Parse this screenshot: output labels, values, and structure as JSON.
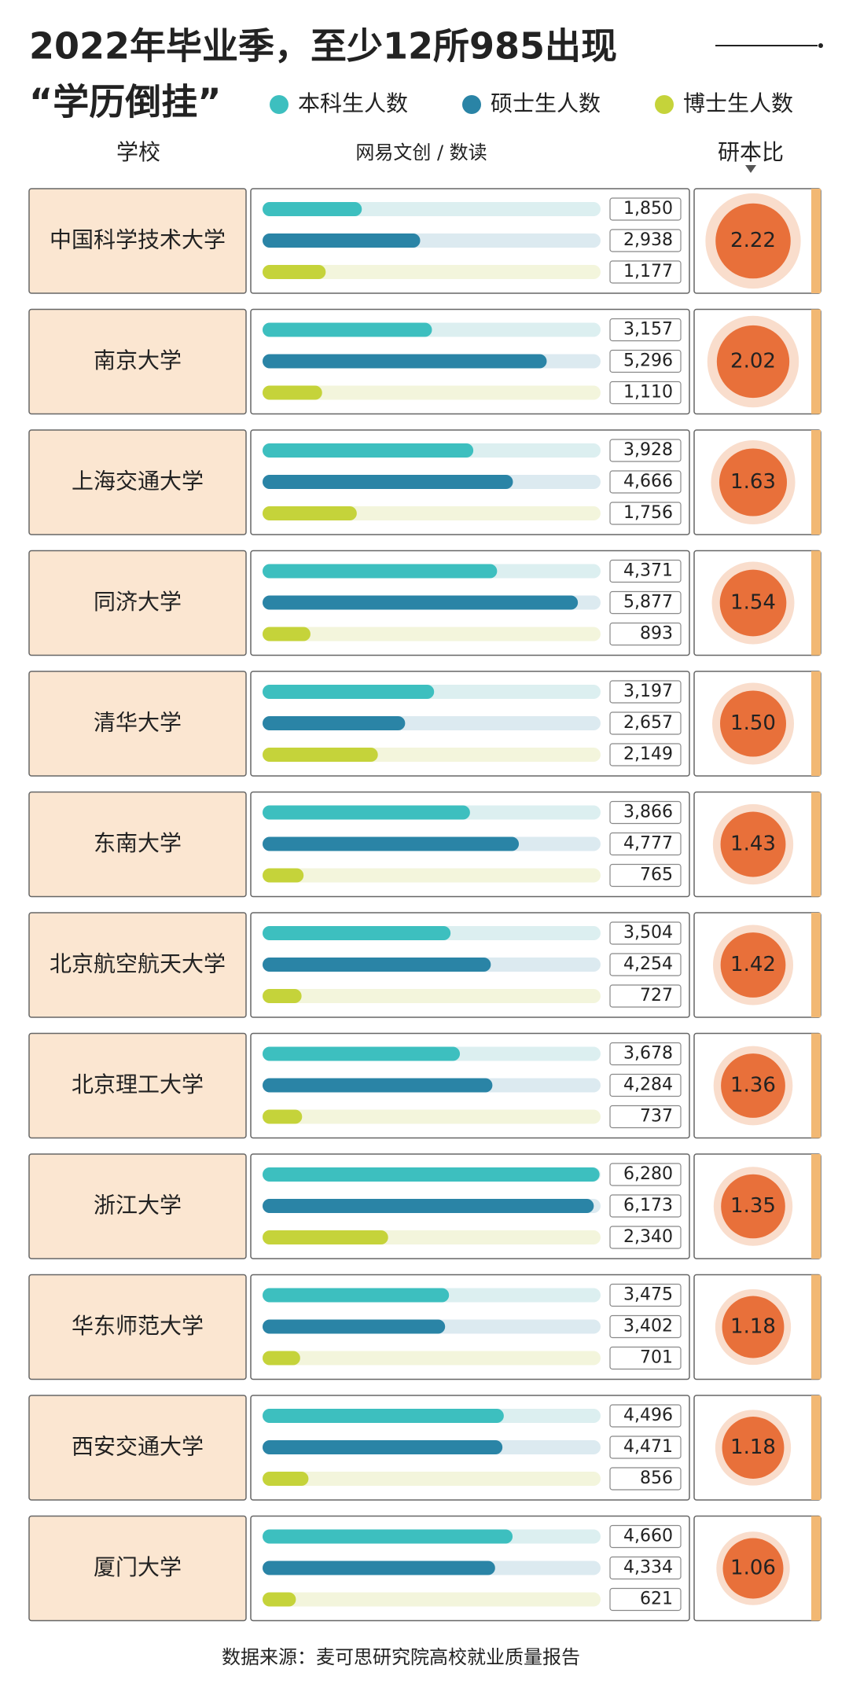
{
  "chart_data": {
    "type": "bar",
    "orientation": "horizontal",
    "title": "2022年毕业季，至少12所985出现",
    "subtitle": "“学历倒挂”",
    "category_header": "学校",
    "brand": "网易文创 / 数读",
    "source": "数据来源：麦可思研究院高校就业质量报告",
    "categories": [
      "中国科学技术大学",
      "南京大学",
      "上海交通大学",
      "同济大学",
      "清华大学",
      "东南大学",
      "北京航空航天大学",
      "北京理工大学",
      "浙江大学",
      "华东师范大学",
      "西安交通大学",
      "厦门大学"
    ],
    "xlim": [
      0,
      6300
    ],
    "series": [
      {
        "name": "本科生人数",
        "color": "#3dbfbf",
        "values": [
          1850,
          3157,
          3928,
          4371,
          3197,
          3866,
          3504,
          3678,
          6280,
          3475,
          4496,
          4660
        ],
        "value_labels": [
          "1,850",
          "3,157",
          "3,928",
          "4,371",
          "3,197",
          "3,866",
          "3,504",
          "3,678",
          "6,280",
          "3,475",
          "4,496",
          "4,660"
        ]
      },
      {
        "name": "硕士生人数",
        "color": "#2a84a6",
        "values": [
          2938,
          5296,
          4666,
          5877,
          2657,
          4777,
          4254,
          4284,
          6173,
          3402,
          4471,
          4334
        ],
        "value_labels": [
          "2,938",
          "5,296",
          "4,666",
          "5,877",
          "2,657",
          "4,777",
          "4,254",
          "4,284",
          "6,173",
          "3,402",
          "4,471",
          "4,334"
        ]
      },
      {
        "name": "博士生人数",
        "color": "#c5d33a",
        "values": [
          1177,
          1110,
          1756,
          893,
          2149,
          765,
          727,
          737,
          2340,
          701,
          856,
          621
        ],
        "value_labels": [
          "1,177",
          "1,110",
          "1,756",
          "893",
          "2,149",
          "765",
          "727",
          "737",
          "2,340",
          "701",
          "856",
          "621"
        ]
      }
    ],
    "ratio": {
      "name": "研本比",
      "color": "#e8703a",
      "values": [
        2.22,
        2.02,
        1.63,
        1.54,
        1.5,
        1.43,
        1.42,
        1.36,
        1.35,
        1.18,
        1.18,
        1.06
      ],
      "value_labels": [
        "2.22",
        "2.02",
        "1.63",
        "1.54",
        "1.50",
        "1.43",
        "1.42",
        "1.36",
        "1.35",
        "1.18",
        "1.18",
        "1.06"
      ]
    }
  }
}
